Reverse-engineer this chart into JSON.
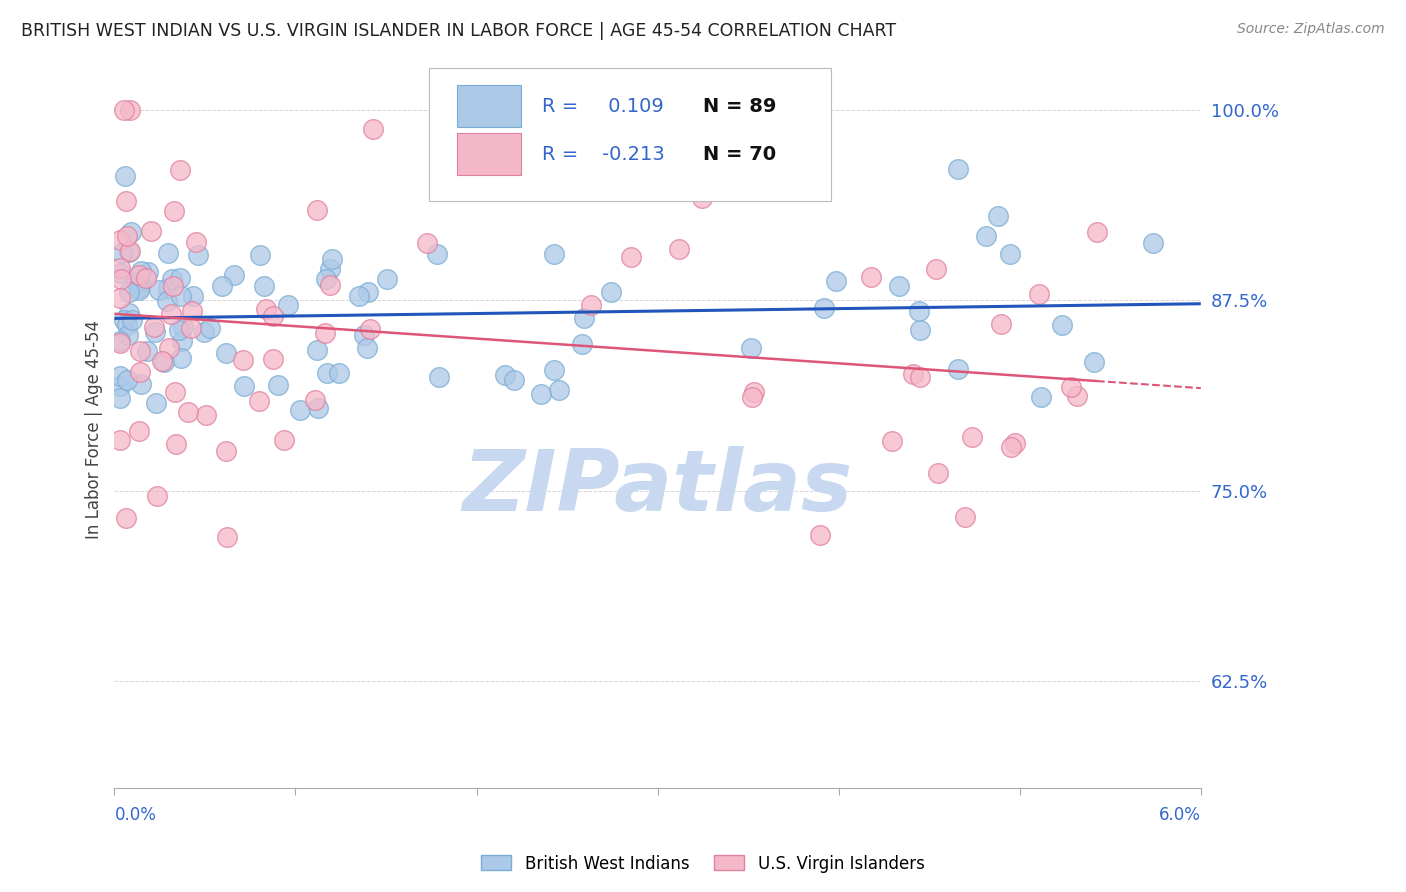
{
  "title": "BRITISH WEST INDIAN VS U.S. VIRGIN ISLANDER IN LABOR FORCE | AGE 45-54 CORRELATION CHART",
  "source": "Source: ZipAtlas.com",
  "ylabel": "In Labor Force | Age 45-54",
  "xmin": 0.0,
  "xmax": 0.06,
  "ymin": 0.555,
  "ymax": 1.025,
  "yticks": [
    0.625,
    0.75,
    0.875,
    1.0
  ],
  "series1_name": "British West Indians",
  "series1_color": "#adc9e8",
  "series1_edge_color": "#7aadd4",
  "series1_R": 0.109,
  "series1_N": 89,
  "series1_line_color": "#2255bb",
  "series2_name": "U.S. Virgin Islanders",
  "series2_color": "#f5b8c8",
  "series2_edge_color": "#e080a0",
  "series2_R": -0.213,
  "series2_N": 70,
  "series2_line_color": "#dd5577",
  "background_color": "#ffffff",
  "grid_color": "#cccccc",
  "title_color": "#222222",
  "axis_label_color": "#3366cc",
  "legend_R_color": "#3366cc",
  "legend_N_color": "#111111",
  "watermark_color": "#c8d8f0",
  "legend_patch1_color": "#adc9e8",
  "legend_patch1_edge": "#7aadd4",
  "legend_patch2_color": "#f5b8c8",
  "legend_patch2_edge": "#e080a0"
}
